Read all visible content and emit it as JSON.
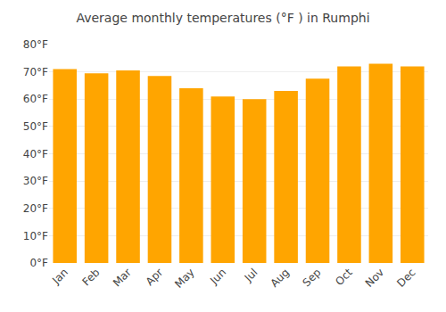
{
  "chart_data": {
    "type": "bar",
    "title": "Average monthly temperatures (°F ) in Rumphi",
    "categories": [
      "Jan",
      "Feb",
      "Mar",
      "Apr",
      "May",
      "Jun",
      "Jul",
      "Aug",
      "Sep",
      "Oct",
      "Nov",
      "Dec"
    ],
    "values": [
      71.0,
      69.5,
      70.5,
      68.5,
      64.0,
      61.0,
      60.0,
      63.0,
      67.5,
      72.0,
      73.0,
      72.0
    ],
    "color": "#FFA500",
    "ylim": [
      0,
      80
    ],
    "yticks": [
      {
        "value": 0,
        "label": "0°F"
      },
      {
        "value": 10,
        "label": "10°F"
      },
      {
        "value": 20,
        "label": "20°F"
      },
      {
        "value": 30,
        "label": "30°F"
      },
      {
        "value": 40,
        "label": "40°F"
      },
      {
        "value": 50,
        "label": "50°F"
      },
      {
        "value": 60,
        "label": "60°F"
      },
      {
        "value": 70,
        "label": "70°F"
      },
      {
        "value": 80,
        "label": "80°F"
      }
    ],
    "grid": true
  }
}
